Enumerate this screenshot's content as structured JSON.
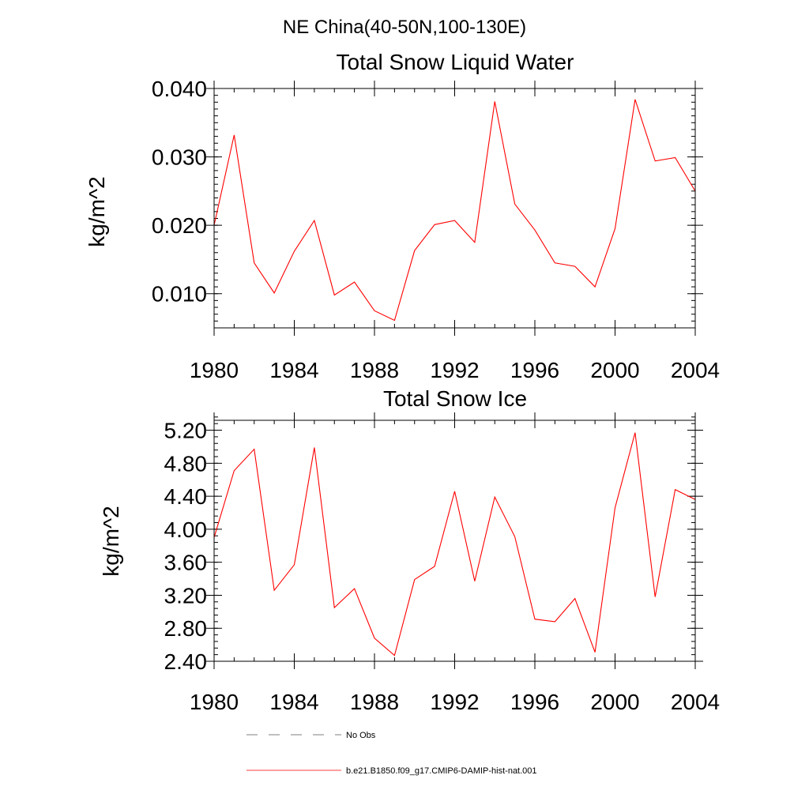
{
  "figure": {
    "supertitle": "NE China(40-50N,100-130E)"
  },
  "chart_data": [
    {
      "type": "line",
      "title": "Total Snow Liquid Water",
      "xlabel": "",
      "ylabel": "kg/m^2",
      "xlim": [
        1980,
        2004
      ],
      "ylim": [
        0.005,
        0.04
      ],
      "x_ticks": [
        1980,
        1984,
        1988,
        1992,
        1996,
        2000,
        2004
      ],
      "y_ticks": [
        0.01,
        0.02,
        0.03,
        0.04
      ],
      "y_tick_labels": [
        "0.010",
        "0.020",
        "0.030",
        "0.040"
      ],
      "grid": false,
      "series": [
        {
          "name": "b.e21.B1850.f09_g17.CMIP6-DAMIP-hist-nat.001",
          "color": "#ff0000",
          "x": [
            1980,
            1981,
            1982,
            1983,
            1984,
            1985,
            1986,
            1987,
            1988,
            1989,
            1990,
            1991,
            1992,
            1993,
            1994,
            1995,
            1996,
            1997,
            1998,
            1999,
            2000,
            2001,
            2002,
            2003,
            2004
          ],
          "values": [
            0.02,
            0.0332,
            0.0145,
            0.0101,
            0.0162,
            0.0207,
            0.0098,
            0.0117,
            0.0075,
            0.0061,
            0.0163,
            0.0201,
            0.0207,
            0.0175,
            0.0381,
            0.0231,
            0.0193,
            0.0145,
            0.014,
            0.011,
            0.0195,
            0.0384,
            0.0294,
            0.0299,
            0.025
          ]
        }
      ]
    },
    {
      "type": "line",
      "title": "Total Snow Ice",
      "xlabel": "",
      "ylabel": "kg/m^2",
      "xlim": [
        1980,
        2004
      ],
      "ylim": [
        2.4,
        5.32
      ],
      "x_ticks": [
        1980,
        1984,
        1988,
        1992,
        1996,
        2000,
        2004
      ],
      "y_ticks": [
        2.4,
        2.8,
        3.2,
        3.6,
        4.0,
        4.4,
        4.8,
        5.2
      ],
      "y_tick_labels": [
        "2.40",
        "2.80",
        "3.20",
        "3.60",
        "4.00",
        "4.40",
        "4.80",
        "5.20"
      ],
      "grid": false,
      "series": [
        {
          "name": "b.e21.B1850.f09_g17.CMIP6-DAMIP-hist-nat.001",
          "color": "#ff0000",
          "x": [
            1980,
            1981,
            1982,
            1983,
            1984,
            1985,
            1986,
            1987,
            1988,
            1989,
            1990,
            1991,
            1992,
            1993,
            1994,
            1995,
            1996,
            1997,
            1998,
            1999,
            2000,
            2001,
            2002,
            2003,
            2004
          ],
          "values": [
            3.9,
            4.71,
            4.97,
            3.26,
            3.57,
            4.99,
            3.05,
            3.28,
            2.68,
            2.47,
            3.39,
            3.55,
            4.46,
            3.37,
            4.39,
            3.91,
            2.91,
            2.88,
            3.16,
            2.51,
            4.26,
            5.17,
            3.18,
            4.48,
            4.36
          ]
        }
      ]
    }
  ],
  "legend": {
    "placement": "bottom-center",
    "items": [
      {
        "label": "No Obs",
        "color": "#000000",
        "style": "dashed"
      },
      {
        "label": "b.e21.B1850.f09_g17.CMIP6-DAMIP-hist-nat.001",
        "color": "#ff0000",
        "style": "solid"
      }
    ]
  }
}
